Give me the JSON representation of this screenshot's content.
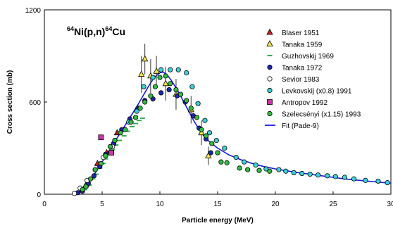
{
  "chart_data": {
    "type": "scatter",
    "title_parts": {
      "mass1": "64",
      "elem1": "Ni(p,n)",
      "mass2": "64",
      "elem2": "Cu"
    },
    "xlabel": "Particle energy (MeV)",
    "ylabel": "Cross section (mb)",
    "xlim": [
      0,
      30
    ],
    "ylim": [
      0,
      1200
    ],
    "xticks": [
      0,
      5,
      10,
      15,
      20,
      25,
      30
    ],
    "yticks": [
      0,
      600,
      1200
    ],
    "grid": false,
    "legend_position": "top-right",
    "series": [
      {
        "name": "Blaser 1951",
        "marker": "triangle",
        "color": "#cc2222",
        "points": [
          [
            3.6,
            60
          ],
          [
            4.6,
            200
          ],
          [
            5.4,
            270
          ],
          [
            6.3,
            400
          ]
        ]
      },
      {
        "name": "Tanaka 1959",
        "marker": "triangle",
        "color": "#f2e44a",
        "points": [
          [
            8.4,
            780,
            120
          ],
          [
            8.7,
            880,
            100
          ],
          [
            9.2,
            770,
            110
          ],
          [
            9.7,
            800,
            100
          ],
          [
            10.5,
            720,
            110
          ],
          [
            11.4,
            650,
            100
          ],
          [
            12.7,
            550,
            90
          ],
          [
            13.6,
            400,
            80
          ],
          [
            14.2,
            250,
            60
          ]
        ]
      },
      {
        "name": "Guzhovskij 1969",
        "marker": "dash",
        "color": "#33aa55",
        "points": [
          [
            3.5,
            30
          ],
          [
            3.9,
            60
          ],
          [
            4.2,
            100
          ],
          [
            4.5,
            130
          ],
          [
            4.8,
            170
          ],
          [
            5.1,
            200
          ],
          [
            5.3,
            230
          ],
          [
            5.6,
            260
          ],
          [
            5.9,
            290
          ],
          [
            6.2,
            320
          ],
          [
            6.5,
            350
          ],
          [
            6.9,
            380
          ],
          [
            7.2,
            410
          ],
          [
            7.6,
            440
          ],
          [
            7.9,
            460
          ],
          [
            8.2,
            480
          ],
          [
            8.5,
            495
          ]
        ]
      },
      {
        "name": "Tanaka 1972",
        "marker": "circle",
        "color": "#1a2aa8",
        "points": [
          [
            2.9,
            10
          ],
          [
            3.3,
            20
          ],
          [
            3.8,
            70
          ],
          [
            4.3,
            120
          ],
          [
            4.8,
            180
          ],
          [
            5.3,
            260
          ],
          [
            6.0,
            330
          ],
          [
            6.7,
            420
          ],
          [
            7.4,
            490
          ],
          [
            8.1,
            560
          ],
          [
            8.7,
            610
          ],
          [
            9.4,
            620
          ],
          [
            10.1,
            660
          ],
          [
            10.8,
            680
          ],
          [
            11.5,
            640
          ],
          [
            12.2,
            600
          ],
          [
            12.9,
            510
          ],
          [
            13.4,
            430
          ],
          [
            14.0,
            360
          ],
          [
            14.4,
            270
          ]
        ]
      },
      {
        "name": "Sevior 1983",
        "marker": "circle",
        "color": "#ffffff",
        "points": [
          [
            2.6,
            5
          ],
          [
            3.1,
            40
          ],
          [
            3.7,
            90
          ],
          [
            4.4,
            160
          ],
          [
            5.1,
            240
          ],
          [
            5.9,
            310
          ]
        ]
      },
      {
        "name": "Levkovskij (x0.8) 1991",
        "marker": "circle",
        "color": "#3cd0d6",
        "points": [
          [
            6.1,
            350
          ],
          [
            7.3,
            470
          ],
          [
            8.0,
            540
          ],
          [
            8.6,
            700
          ],
          [
            9.4,
            760
          ],
          [
            10.1,
            810
          ],
          [
            10.9,
            810
          ],
          [
            11.6,
            810
          ],
          [
            12.3,
            790
          ],
          [
            12.8,
            700
          ],
          [
            13.3,
            590
          ],
          [
            13.9,
            480
          ],
          [
            14.3,
            400
          ],
          [
            14.9,
            350
          ],
          [
            15.6,
            300
          ],
          [
            16.6,
            240
          ],
          [
            17.3,
            210
          ],
          [
            18.3,
            190
          ],
          [
            19.2,
            165
          ],
          [
            20.3,
            160
          ],
          [
            20.9,
            150
          ],
          [
            21.6,
            140
          ],
          [
            22.3,
            135
          ],
          [
            23.0,
            130
          ],
          [
            23.7,
            125
          ],
          [
            24.5,
            120
          ],
          [
            25.2,
            115
          ],
          [
            26.0,
            110
          ],
          [
            26.8,
            100
          ],
          [
            27.8,
            90
          ],
          [
            28.9,
            85
          ],
          [
            29.7,
            75
          ]
        ]
      },
      {
        "name": "Antropov 1992",
        "marker": "square",
        "color": "#cc33aa",
        "points": [
          [
            4.9,
            370
          ],
          [
            5.8,
            270
          ]
        ]
      },
      {
        "name": "Szelecsényi (x1.15) 1993",
        "marker": "circle",
        "color": "#33bb44",
        "points": [
          [
            3.3,
            30
          ],
          [
            3.6,
            50
          ],
          [
            4.0,
            100
          ],
          [
            4.4,
            160
          ],
          [
            4.9,
            200
          ],
          [
            5.3,
            250
          ],
          [
            5.7,
            310
          ],
          [
            6.1,
            350
          ],
          [
            6.6,
            400
          ],
          [
            7.0,
            420
          ],
          [
            7.5,
            470
          ],
          [
            7.9,
            500
          ],
          [
            8.3,
            560
          ],
          [
            8.7,
            600
          ],
          [
            9.2,
            640
          ],
          [
            9.6,
            700
          ],
          [
            10.0,
            760
          ],
          [
            10.5,
            770
          ],
          [
            10.9,
            720
          ],
          [
            11.4,
            680
          ],
          [
            11.8,
            650
          ],
          [
            12.3,
            610
          ],
          [
            12.7,
            560
          ],
          [
            13.2,
            500
          ],
          [
            13.6,
            420
          ],
          [
            14.0,
            380
          ],
          [
            14.5,
            330
          ],
          [
            15.0,
            270
          ],
          [
            15.3,
            210
          ],
          [
            15.8,
            205
          ],
          [
            16.9,
            170
          ],
          [
            17.6,
            160
          ],
          [
            18.6,
            155
          ],
          [
            19.5,
            150
          ]
        ]
      }
    ],
    "fit": {
      "name": "Fit (Pade-9)",
      "color": "#1a1adc",
      "points": [
        [
          2.5,
          0
        ],
        [
          3.0,
          15
        ],
        [
          3.5,
          45
        ],
        [
          4.0,
          90
        ],
        [
          4.5,
          150
        ],
        [
          5.0,
          210
        ],
        [
          5.5,
          270
        ],
        [
          6.0,
          330
        ],
        [
          6.5,
          390
        ],
        [
          7.0,
          450
        ],
        [
          7.5,
          510
        ],
        [
          8.0,
          570
        ],
        [
          8.5,
          635
        ],
        [
          9.0,
          700
        ],
        [
          9.5,
          760
        ],
        [
          10.0,
          790
        ],
        [
          10.3,
          795
        ],
        [
          10.7,
          770
        ],
        [
          11.0,
          740
        ],
        [
          11.5,
          680
        ],
        [
          12.0,
          610
        ],
        [
          12.5,
          540
        ],
        [
          13.0,
          470
        ],
        [
          13.5,
          410
        ],
        [
          14.0,
          360
        ],
        [
          15.0,
          300
        ],
        [
          16.0,
          255
        ],
        [
          17.0,
          225
        ],
        [
          18.0,
          200
        ],
        [
          19.0,
          180
        ],
        [
          20.0,
          165
        ],
        [
          21.0,
          152
        ],
        [
          22.0,
          140
        ],
        [
          23.0,
          130
        ],
        [
          24.0,
          120
        ],
        [
          25.0,
          110
        ],
        [
          26.0,
          100
        ],
        [
          27.0,
          92
        ],
        [
          28.0,
          85
        ],
        [
          29.0,
          78
        ],
        [
          30.0,
          72
        ]
      ]
    }
  }
}
